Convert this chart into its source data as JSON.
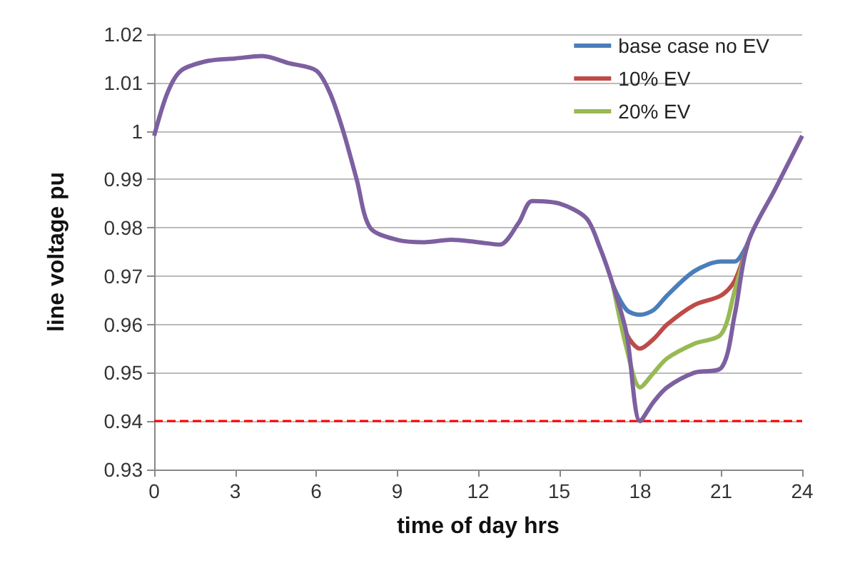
{
  "chart_data": {
    "type": "line",
    "xlabel": "time of day hrs",
    "ylabel": "line voltage pu",
    "x": [
      0,
      0.5,
      1,
      2,
      3,
      4,
      5,
      6,
      6.5,
      7,
      7.5,
      8,
      9,
      10,
      11,
      12,
      12.8,
      13.5,
      14,
      15,
      16,
      16.5,
      17,
      17.5,
      18,
      18.5,
      19,
      20,
      21,
      21.5,
      22,
      23,
      24
    ],
    "series": [
      {
        "name": "base case no EV",
        "color": "#4a7ebb",
        "values": [
          null,
          null,
          null,
          null,
          null,
          null,
          null,
          null,
          null,
          null,
          null,
          null,
          null,
          null,
          null,
          null,
          null,
          null,
          null,
          null,
          null,
          null,
          0.968,
          0.963,
          0.962,
          0.963,
          0.966,
          0.971,
          0.973,
          0.973,
          0.977,
          null,
          null
        ]
      },
      {
        "name": "10% EV",
        "color": "#be4b48",
        "values": [
          null,
          null,
          null,
          null,
          null,
          null,
          null,
          null,
          null,
          null,
          null,
          null,
          null,
          null,
          null,
          null,
          null,
          null,
          null,
          null,
          null,
          null,
          0.968,
          0.958,
          0.955,
          0.957,
          0.96,
          0.964,
          0.966,
          0.969,
          0.977,
          null,
          null
        ]
      },
      {
        "name": "20% EV",
        "color": "#98b954",
        "values": [
          null,
          null,
          null,
          null,
          null,
          null,
          null,
          null,
          null,
          null,
          null,
          null,
          null,
          null,
          null,
          null,
          null,
          null,
          null,
          null,
          null,
          null,
          0.968,
          0.955,
          0.947,
          0.95,
          0.953,
          0.956,
          0.958,
          0.967,
          0.977,
          null,
          null
        ]
      },
      {
        "color": "#7d60a0",
        "values": [
          0.999,
          1.008,
          1.0125,
          1.0145,
          1.015,
          1.0155,
          1.014,
          1.0125,
          1.008,
          1.0,
          0.99,
          0.98,
          0.9775,
          0.977,
          0.9775,
          0.977,
          0.9765,
          0.981,
          0.9855,
          0.985,
          0.982,
          0.976,
          0.968,
          0.958,
          0.94,
          0.944,
          0.947,
          0.95,
          0.951,
          0.962,
          0.977,
          0.988,
          0.999
        ]
      }
    ],
    "xlim": [
      0,
      24
    ],
    "xticks": [
      0,
      3,
      6,
      9,
      12,
      15,
      18,
      21,
      24
    ],
    "ylim": [
      0.93,
      1.02
    ],
    "yticks": [
      0.93,
      0.94,
      0.95,
      0.96,
      0.97,
      0.98,
      0.99,
      1,
      1.01,
      1.02
    ],
    "ref_lines": [
      {
        "axis": "y",
        "value": 0.94,
        "color": "#ff0000",
        "line_style": "dashed"
      }
    ],
    "grid": "y",
    "legend": "top right",
    "marker": "none",
    "line_style": "solid"
  }
}
